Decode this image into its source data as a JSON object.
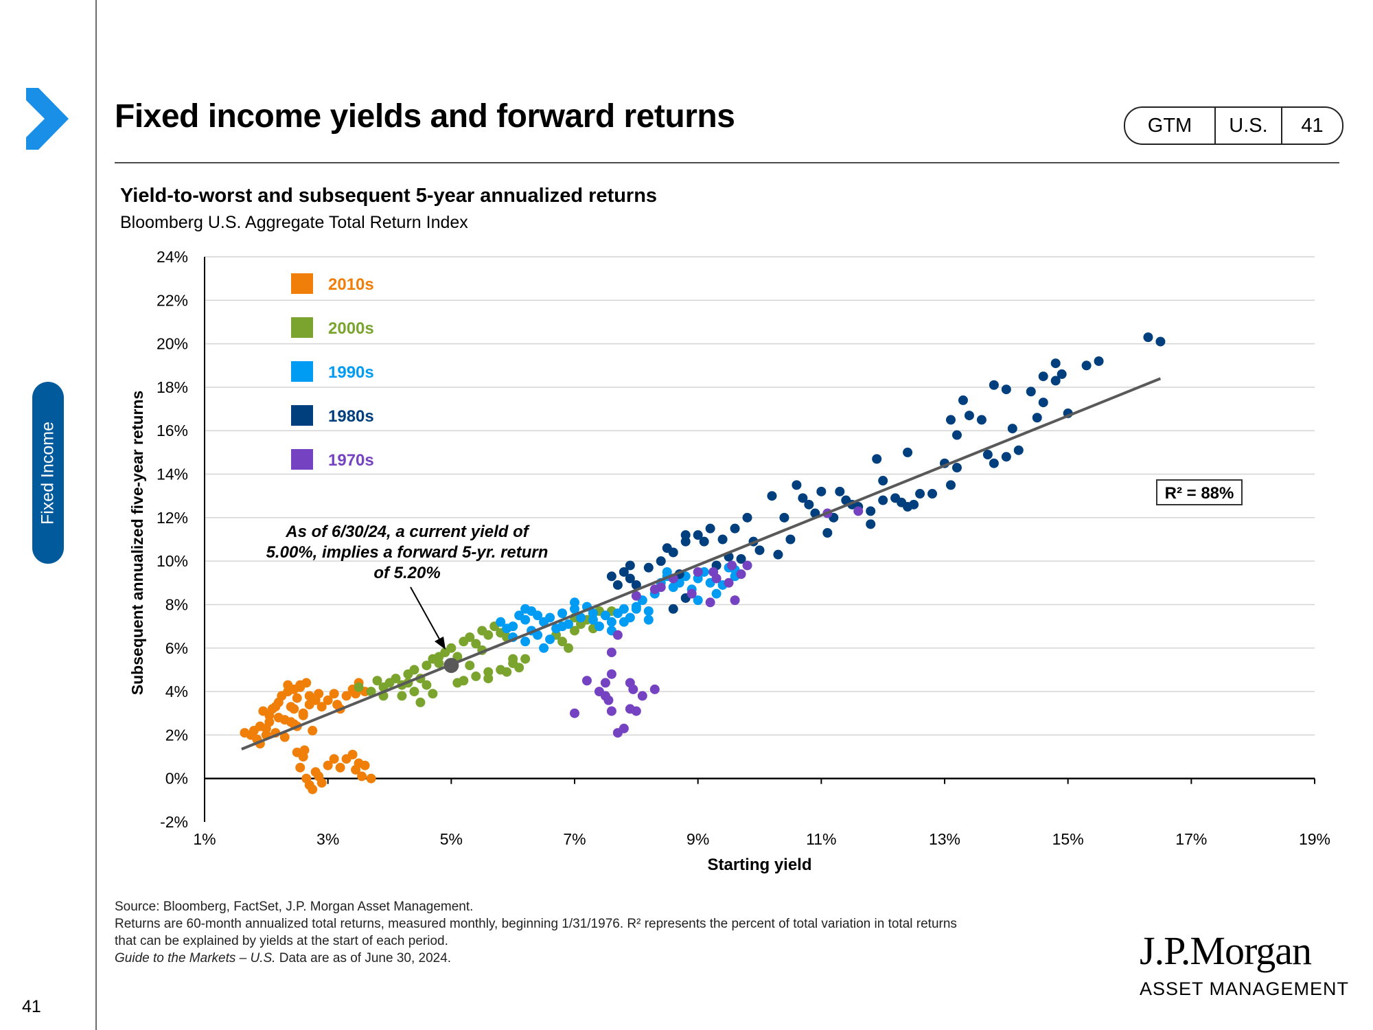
{
  "page": {
    "title": "Fixed income yields and forward returns",
    "badge": [
      "GTM",
      "U.S.",
      "41"
    ],
    "section": "Fixed Income",
    "page_number": "41"
  },
  "chart_title": "Yield-to-worst and subsequent 5-year annualized returns",
  "chart_subtitle": "Bloomberg U.S. Aggregate Total Return Index",
  "annotation": {
    "lines": [
      "As of 6/30/24, a current yield of",
      "5.00%, implies a forward 5-yr. return",
      "of 5.20%"
    ],
    "point": [
      5.0,
      5.2
    ]
  },
  "r2_label": "R² = 88%",
  "footnote": {
    "source": "Source: Bloomberg, FactSet, J.P. Morgan Asset Management.",
    "line1": "Returns are 60-month annualized total returns, measured monthly, beginning 1/31/1976. R² represents the percent of total variation in total returns",
    "line2": "that can be explained by yields at the start of each period.",
    "line3_italic": "Guide to the Markets – U.S.",
    "line3_rest": " Data are as of June 30, 2024."
  },
  "logo": {
    "name": "J.P.Morgan",
    "sub": "ASSET MANAGEMENT"
  },
  "colors": {
    "accent": "#005A9C",
    "chevron": "#1A8FE8",
    "trend": "#595959"
  },
  "chart_data": {
    "type": "scatter",
    "xlabel": "Starting yield",
    "ylabel": "Subsequent annualized five-year returns",
    "xlim": [
      1,
      19
    ],
    "ylim": [
      -2,
      24
    ],
    "xticks": [
      "1%",
      "3%",
      "5%",
      "7%",
      "9%",
      "11%",
      "13%",
      "15%",
      "17%",
      "19%"
    ],
    "yticks": [
      "-2%",
      "0%",
      "2%",
      "4%",
      "6%",
      "8%",
      "10%",
      "12%",
      "14%",
      "16%",
      "18%",
      "20%",
      "22%",
      "24%"
    ],
    "grid": true,
    "legend_position": "top-left",
    "trendline": {
      "x": [
        1.6,
        16.5
      ],
      "y": [
        1.35,
        18.4
      ]
    },
    "series": [
      {
        "name": "2010s",
        "color": "#F07F09",
        "points": [
          [
            1.65,
            2.1
          ],
          [
            1.75,
            2.0
          ],
          [
            1.8,
            2.2
          ],
          [
            1.85,
            1.8
          ],
          [
            1.9,
            1.6
          ],
          [
            1.95,
            3.1
          ],
          [
            2.0,
            2.3
          ],
          [
            2.05,
            2.9
          ],
          [
            2.1,
            3.2
          ],
          [
            2.15,
            2.1
          ],
          [
            2.2,
            3.5
          ],
          [
            2.25,
            3.8
          ],
          [
            2.3,
            2.7
          ],
          [
            2.35,
            4.0
          ],
          [
            2.4,
            3.3
          ],
          [
            2.45,
            2.5
          ],
          [
            2.5,
            3.7
          ],
          [
            2.55,
            4.2
          ],
          [
            2.6,
            3.0
          ],
          [
            2.65,
            4.4
          ],
          [
            2.7,
            3.4
          ],
          [
            2.75,
            2.2
          ],
          [
            2.8,
            3.6
          ],
          [
            2.9,
            3.3
          ],
          [
            3.0,
            3.6
          ],
          [
            3.1,
            3.9
          ],
          [
            3.2,
            3.2
          ],
          [
            3.3,
            3.8
          ],
          [
            3.4,
            4.1
          ],
          [
            3.5,
            4.4
          ],
          [
            3.6,
            4.0
          ],
          [
            2.3,
            1.9
          ],
          [
            2.4,
            2.6
          ],
          [
            2.5,
            2.4
          ],
          [
            2.2,
            2.8
          ],
          [
            2.15,
            3.3
          ],
          [
            2.45,
            3.2
          ],
          [
            2.6,
            2.9
          ],
          [
            2.05,
            2.6
          ],
          [
            2.35,
            4.3
          ],
          [
            2.45,
            4.1
          ],
          [
            2.55,
            4.3
          ],
          [
            2.85,
            3.9
          ],
          [
            3.15,
            3.4
          ],
          [
            3.45,
            3.9
          ],
          [
            1.9,
            2.4
          ],
          [
            2.0,
            2.0
          ],
          [
            2.7,
            3.8
          ],
          [
            2.5,
            1.2
          ],
          [
            2.55,
            0.5
          ],
          [
            2.6,
            1.0
          ],
          [
            2.65,
            0.0
          ],
          [
            2.7,
            -0.3
          ],
          [
            2.75,
            -0.5
          ],
          [
            2.8,
            0.3
          ],
          [
            2.85,
            0.1
          ],
          [
            2.9,
            -0.2
          ],
          [
            3.0,
            0.6
          ],
          [
            3.1,
            0.9
          ],
          [
            3.2,
            0.5
          ],
          [
            3.3,
            0.9
          ],
          [
            3.4,
            1.1
          ],
          [
            3.5,
            0.7
          ],
          [
            3.55,
            0.1
          ],
          [
            3.6,
            0.6
          ],
          [
            3.7,
            0.0
          ],
          [
            2.62,
            1.3
          ],
          [
            3.45,
            0.4
          ]
        ]
      },
      {
        "name": "2000s",
        "color": "#7AA42E",
        "points": [
          [
            3.5,
            4.2
          ],
          [
            3.7,
            4.0
          ],
          [
            3.8,
            4.5
          ],
          [
            3.9,
            4.2
          ],
          [
            4.0,
            4.4
          ],
          [
            4.1,
            4.6
          ],
          [
            4.2,
            4.3
          ],
          [
            4.3,
            4.8
          ],
          [
            4.4,
            5.0
          ],
          [
            4.5,
            4.6
          ],
          [
            4.6,
            5.2
          ],
          [
            4.7,
            5.5
          ],
          [
            4.8,
            5.3
          ],
          [
            4.9,
            5.8
          ],
          [
            5.0,
            6.0
          ],
          [
            5.1,
            5.6
          ],
          [
            5.2,
            6.3
          ],
          [
            5.3,
            6.5
          ],
          [
            5.4,
            6.2
          ],
          [
            5.5,
            6.8
          ],
          [
            5.6,
            6.6
          ],
          [
            5.7,
            7.0
          ],
          [
            5.8,
            6.7
          ],
          [
            5.9,
            6.5
          ],
          [
            4.2,
            3.8
          ],
          [
            4.4,
            4.0
          ],
          [
            4.6,
            4.3
          ],
          [
            4.7,
            3.9
          ],
          [
            5.2,
            4.5
          ],
          [
            5.4,
            4.7
          ],
          [
            5.6,
            4.9
          ],
          [
            5.8,
            5.0
          ],
          [
            6.0,
            5.3
          ],
          [
            6.1,
            5.1
          ],
          [
            6.2,
            5.5
          ],
          [
            5.6,
            4.6
          ],
          [
            4.5,
            3.5
          ],
          [
            6.8,
            6.3
          ],
          [
            7.0,
            6.8
          ],
          [
            7.1,
            7.1
          ],
          [
            7.2,
            7.3
          ],
          [
            7.3,
            7.6
          ],
          [
            7.4,
            7.7
          ],
          [
            7.5,
            7.5
          ],
          [
            6.9,
            6.0
          ],
          [
            6.7,
            6.6
          ],
          [
            7.0,
            7.4
          ],
          [
            4.8,
            5.6
          ],
          [
            5.0,
            5.1
          ],
          [
            5.5,
            5.9
          ],
          [
            5.3,
            5.2
          ],
          [
            4.3,
            4.4
          ],
          [
            3.9,
            3.8
          ],
          [
            5.9,
            4.9
          ],
          [
            6.0,
            5.5
          ],
          [
            5.1,
            4.4
          ],
          [
            7.6,
            7.7
          ],
          [
            7.3,
            6.9
          ]
        ]
      },
      {
        "name": "1990s",
        "color": "#009BF3",
        "points": [
          [
            5.8,
            7.2
          ],
          [
            5.9,
            6.9
          ],
          [
            6.0,
            7.0
          ],
          [
            6.1,
            7.5
          ],
          [
            6.2,
            7.3
          ],
          [
            6.3,
            6.8
          ],
          [
            6.4,
            6.6
          ],
          [
            6.5,
            7.2
          ],
          [
            6.6,
            7.4
          ],
          [
            6.7,
            6.9
          ],
          [
            6.8,
            7.6
          ],
          [
            6.9,
            7.1
          ],
          [
            7.0,
            7.8
          ],
          [
            7.1,
            7.4
          ],
          [
            7.2,
            7.9
          ],
          [
            7.3,
            7.3
          ],
          [
            7.4,
            7.0
          ],
          [
            7.5,
            7.5
          ],
          [
            7.6,
            6.8
          ],
          [
            7.7,
            7.6
          ],
          [
            7.8,
            7.8
          ],
          [
            7.9,
            7.4
          ],
          [
            8.0,
            7.9
          ],
          [
            8.1,
            8.2
          ],
          [
            8.2,
            7.7
          ],
          [
            8.3,
            8.5
          ],
          [
            8.4,
            9.0
          ],
          [
            8.5,
            9.3
          ],
          [
            8.6,
            8.8
          ],
          [
            8.7,
            9.0
          ],
          [
            8.8,
            9.3
          ],
          [
            8.9,
            8.7
          ],
          [
            9.0,
            9.2
          ],
          [
            9.1,
            9.5
          ],
          [
            9.2,
            9.0
          ],
          [
            9.3,
            8.5
          ],
          [
            9.4,
            8.9
          ],
          [
            9.5,
            9.7
          ],
          [
            9.6,
            9.3
          ],
          [
            6.0,
            6.5
          ],
          [
            6.2,
            6.3
          ],
          [
            6.5,
            6.0
          ],
          [
            6.6,
            6.4
          ],
          [
            6.3,
            7.7
          ],
          [
            6.4,
            7.5
          ],
          [
            7.0,
            8.1
          ],
          [
            7.6,
            7.2
          ],
          [
            7.8,
            7.2
          ],
          [
            8.0,
            7.8
          ],
          [
            8.2,
            7.3
          ],
          [
            8.5,
            9.5
          ],
          [
            9.0,
            8.2
          ],
          [
            9.6,
            9.6
          ],
          [
            6.2,
            7.8
          ],
          [
            7.3,
            7.6
          ],
          [
            6.8,
            7.0
          ]
        ]
      },
      {
        "name": "1980s",
        "color": "#003F7D",
        "points": [
          [
            7.6,
            9.3
          ],
          [
            7.7,
            8.9
          ],
          [
            7.8,
            9.5
          ],
          [
            7.9,
            9.2
          ],
          [
            8.0,
            8.9
          ],
          [
            8.2,
            9.7
          ],
          [
            8.4,
            10.0
          ],
          [
            8.5,
            10.6
          ],
          [
            8.6,
            10.4
          ],
          [
            8.8,
            10.9
          ],
          [
            9.0,
            11.2
          ],
          [
            9.2,
            11.5
          ],
          [
            9.4,
            11.0
          ],
          [
            9.6,
            11.5
          ],
          [
            9.8,
            12.0
          ],
          [
            10.0,
            10.5
          ],
          [
            10.2,
            13.0
          ],
          [
            10.4,
            12.0
          ],
          [
            10.6,
            13.5
          ],
          [
            10.8,
            12.6
          ],
          [
            11.0,
            13.2
          ],
          [
            11.2,
            12.0
          ],
          [
            11.4,
            12.8
          ],
          [
            11.6,
            12.5
          ],
          [
            11.8,
            12.3
          ],
          [
            12.0,
            12.8
          ],
          [
            12.2,
            12.9
          ],
          [
            12.4,
            12.5
          ],
          [
            12.6,
            13.1
          ],
          [
            12.8,
            13.1
          ],
          [
            13.0,
            14.5
          ],
          [
            13.1,
            13.5
          ],
          [
            13.2,
            14.3
          ],
          [
            13.4,
            16.7
          ],
          [
            13.6,
            16.5
          ],
          [
            13.8,
            18.1
          ],
          [
            14.0,
            17.9
          ],
          [
            14.2,
            15.1
          ],
          [
            14.4,
            17.8
          ],
          [
            14.6,
            18.5
          ],
          [
            14.8,
            19.1
          ],
          [
            15.0,
            16.8
          ],
          [
            15.3,
            19.0
          ],
          [
            15.5,
            19.2
          ],
          [
            16.3,
            20.3
          ],
          [
            16.5,
            20.1
          ],
          [
            11.9,
            14.7
          ],
          [
            12.4,
            15.0
          ],
          [
            13.1,
            16.5
          ],
          [
            13.2,
            15.8
          ],
          [
            13.3,
            17.4
          ],
          [
            13.8,
            14.5
          ],
          [
            14.0,
            14.8
          ],
          [
            14.1,
            16.1
          ],
          [
            14.6,
            17.3
          ],
          [
            14.8,
            18.3
          ],
          [
            14.9,
            18.6
          ],
          [
            7.9,
            9.8
          ],
          [
            8.8,
            11.2
          ],
          [
            9.5,
            10.2
          ],
          [
            10.3,
            10.3
          ],
          [
            10.5,
            11.0
          ],
          [
            11.1,
            11.3
          ],
          [
            11.8,
            11.7
          ],
          [
            12.0,
            13.7
          ],
          [
            9.1,
            10.9
          ],
          [
            9.7,
            10.1
          ],
          [
            8.6,
            7.8
          ],
          [
            8.8,
            8.3
          ],
          [
            10.7,
            12.9
          ],
          [
            11.5,
            12.6
          ],
          [
            12.5,
            12.6
          ],
          [
            9.3,
            9.8
          ],
          [
            8.7,
            9.4
          ],
          [
            10.9,
            12.2
          ],
          [
            11.3,
            13.2
          ],
          [
            12.3,
            12.7
          ],
          [
            13.7,
            14.9
          ],
          [
            14.5,
            16.6
          ],
          [
            9.9,
            10.9
          ]
        ]
      },
      {
        "name": "1970s",
        "color": "#7542C1",
        "points": [
          [
            7.0,
            3.0
          ],
          [
            7.2,
            4.5
          ],
          [
            7.4,
            4.0
          ],
          [
            7.5,
            4.4
          ],
          [
            7.6,
            4.8
          ],
          [
            7.7,
            2.1
          ],
          [
            7.8,
            2.3
          ],
          [
            7.9,
            3.2
          ],
          [
            8.0,
            3.1
          ],
          [
            8.1,
            3.8
          ],
          [
            8.3,
            4.1
          ],
          [
            7.5,
            3.8
          ],
          [
            7.6,
            3.1
          ],
          [
            7.9,
            4.4
          ],
          [
            7.6,
            5.8
          ],
          [
            7.7,
            6.6
          ],
          [
            8.0,
            8.4
          ],
          [
            8.3,
            8.7
          ],
          [
            8.6,
            9.2
          ],
          [
            8.9,
            8.5
          ],
          [
            9.2,
            8.1
          ],
          [
            9.5,
            9.0
          ],
          [
            9.7,
            9.4
          ],
          [
            9.8,
            9.8
          ],
          [
            9.3,
            9.2
          ],
          [
            9.6,
            8.2
          ],
          [
            9.0,
            9.5
          ],
          [
            8.4,
            8.8
          ],
          [
            11.1,
            12.2
          ],
          [
            11.6,
            12.3
          ],
          [
            7.95,
            4.1
          ],
          [
            7.55,
            3.6
          ],
          [
            9.55,
            9.8
          ],
          [
            9.25,
            9.5
          ]
        ]
      }
    ]
  }
}
